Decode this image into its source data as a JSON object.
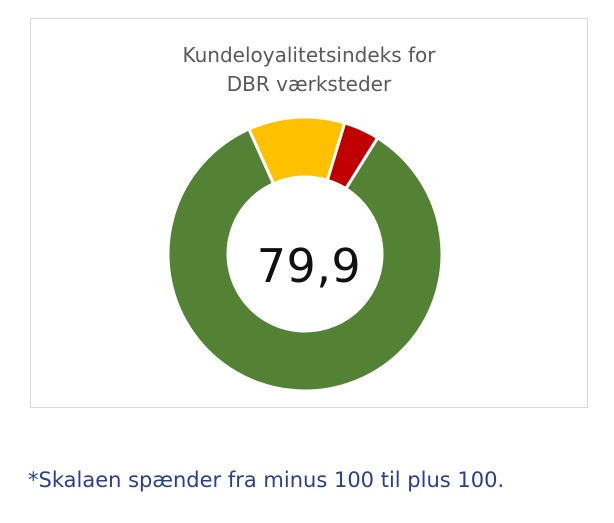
{
  "chart_data": {
    "type": "pie",
    "variant": "donut",
    "title_lines": [
      "Kundeloyalitetsindeks for",
      "DBR værksteder"
    ],
    "center_label": "79,9",
    "slices": [
      {
        "value": 84.4,
        "color": "#548235"
      },
      {
        "value": 11.4,
        "color": "#ffc000"
      },
      {
        "value": 4.2,
        "color": "#c00000"
      }
    ],
    "legend": "none"
  },
  "footnote": "*Skalaen spænder fra minus 100 til plus 100."
}
